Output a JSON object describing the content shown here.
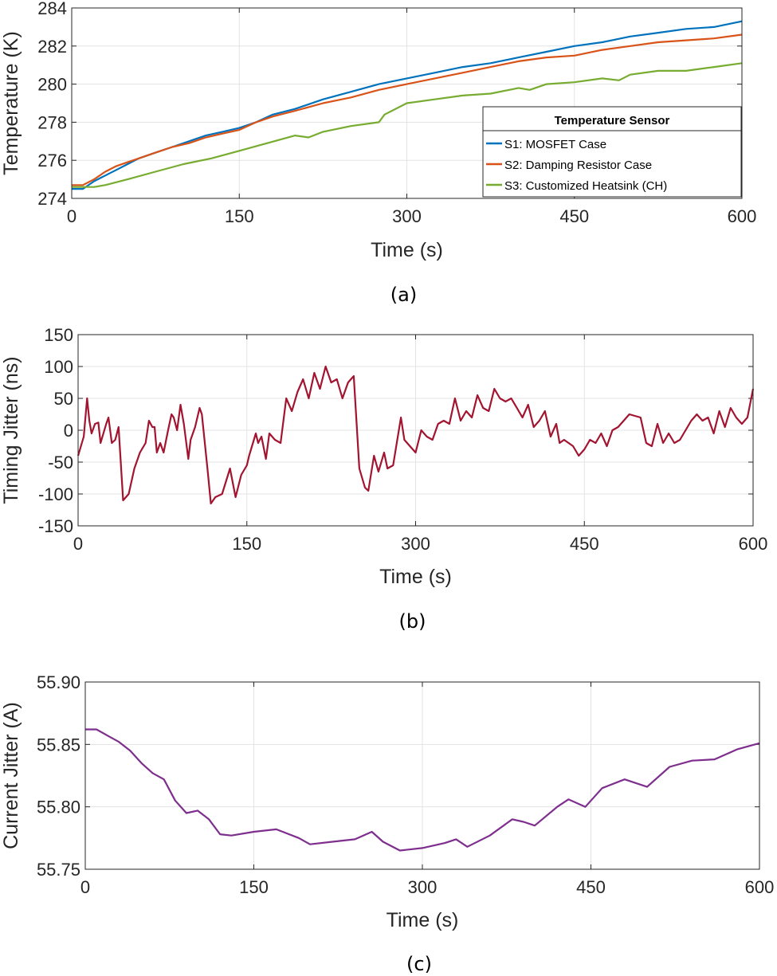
{
  "chart_data": [
    {
      "type": "line",
      "caption": "(a)",
      "xlabel": "Time (s)",
      "ylabel": "Temperature (K)",
      "xlim": [
        0,
        600
      ],
      "ylim": [
        274,
        284
      ],
      "xticks": [
        0,
        150,
        300,
        450,
        600
      ],
      "yticks": [
        274,
        276,
        278,
        280,
        282,
        284
      ],
      "grid": true,
      "legend": {
        "title": "Temperature Sensor",
        "placement": "bottom-right"
      },
      "series": [
        {
          "name": "S1: MOSFET Case",
          "color": "#0072BD",
          "x": [
            0,
            10,
            20,
            30,
            40,
            50,
            60,
            75,
            90,
            105,
            120,
            135,
            150,
            165,
            180,
            200,
            225,
            250,
            275,
            300,
            325,
            350,
            375,
            400,
            425,
            450,
            475,
            500,
            525,
            550,
            575,
            600
          ],
          "y": [
            274.5,
            274.5,
            274.9,
            275.2,
            275.5,
            275.8,
            276.1,
            276.4,
            276.7,
            277.0,
            277.3,
            277.5,
            277.7,
            278.0,
            278.4,
            278.7,
            279.2,
            279.6,
            280.0,
            280.3,
            280.6,
            280.9,
            281.1,
            281.4,
            281.7,
            282.0,
            282.2,
            282.5,
            282.7,
            282.9,
            283.0,
            283.3
          ]
        },
        {
          "name": "S2: Damping Resistor Case",
          "color": "#D95319",
          "x": [
            0,
            10,
            20,
            30,
            40,
            50,
            60,
            75,
            90,
            105,
            120,
            135,
            150,
            165,
            180,
            200,
            225,
            250,
            275,
            300,
            325,
            350,
            375,
            400,
            425,
            450,
            475,
            500,
            525,
            550,
            575,
            600
          ],
          "y": [
            274.7,
            274.7,
            275.0,
            275.4,
            275.7,
            275.9,
            276.1,
            276.4,
            276.7,
            276.9,
            277.2,
            277.4,
            277.6,
            278.0,
            278.3,
            278.6,
            279.0,
            279.3,
            279.7,
            280.0,
            280.3,
            280.6,
            280.9,
            281.2,
            281.4,
            281.5,
            281.8,
            282.0,
            282.2,
            282.3,
            282.4,
            282.6
          ]
        },
        {
          "name": "S3: Customized Heatsink (CH)",
          "color": "#77AC30",
          "x": [
            0,
            10,
            20,
            30,
            50,
            75,
            100,
            125,
            150,
            175,
            200,
            212,
            225,
            250,
            275,
            280,
            300,
            325,
            350,
            375,
            400,
            410,
            425,
            450,
            475,
            490,
            500,
            525,
            550,
            575,
            600
          ],
          "y": [
            274.6,
            274.6,
            274.6,
            274.7,
            275.0,
            275.4,
            275.8,
            276.1,
            276.5,
            276.9,
            277.3,
            277.2,
            277.5,
            277.8,
            278.0,
            278.4,
            279.0,
            279.2,
            279.4,
            279.5,
            279.8,
            279.7,
            280.0,
            280.1,
            280.3,
            280.2,
            280.5,
            280.7,
            280.7,
            280.9,
            281.1
          ]
        }
      ]
    },
    {
      "type": "line",
      "caption": "(b)",
      "xlabel": "Time (s)",
      "ylabel": "Timing Jitter (ns)",
      "xlim": [
        0,
        600
      ],
      "ylim": [
        -150,
        150
      ],
      "xticks": [
        0,
        150,
        300,
        450,
        600
      ],
      "yticks": [
        -150,
        -100,
        -50,
        0,
        50,
        100,
        150
      ],
      "grid": true,
      "series": [
        {
          "name": "Timing Jitter",
          "color": "#A2142F",
          "x": [
            0,
            5,
            8,
            10,
            12,
            15,
            18,
            20,
            25,
            27,
            30,
            33,
            36,
            40,
            45,
            50,
            55,
            60,
            63,
            66,
            68,
            70,
            73,
            76,
            80,
            83,
            85,
            88,
            91,
            94,
            98,
            100,
            104,
            108,
            110,
            115,
            118,
            122,
            128,
            135,
            140,
            145,
            150,
            152,
            158,
            160,
            163,
            167,
            170,
            175,
            180,
            185,
            190,
            195,
            200,
            205,
            210,
            215,
            220,
            225,
            230,
            235,
            240,
            245,
            250,
            255,
            258,
            263,
            267,
            272,
            275,
            280,
            287,
            290,
            295,
            300,
            305,
            310,
            315,
            320,
            325,
            330,
            335,
            340,
            345,
            350,
            355,
            360,
            365,
            370,
            375,
            380,
            385,
            390,
            395,
            400,
            405,
            410,
            415,
            420,
            425,
            428,
            432,
            440,
            445,
            450,
            455,
            460,
            465,
            470,
            475,
            480,
            490,
            500,
            505,
            510,
            515,
            520,
            525,
            530,
            535,
            540,
            545,
            550,
            555,
            560,
            565,
            570,
            575,
            580,
            585,
            590,
            595,
            600
          ],
          "y": [
            -40,
            -10,
            50,
            15,
            -5,
            10,
            12,
            -20,
            10,
            20,
            -20,
            -15,
            5,
            -110,
            -100,
            -60,
            -35,
            -20,
            15,
            5,
            5,
            -35,
            -20,
            -35,
            0,
            25,
            20,
            0,
            40,
            10,
            -45,
            -15,
            5,
            35,
            25,
            -60,
            -115,
            -105,
            -100,
            -60,
            -105,
            -70,
            -55,
            -40,
            -5,
            -20,
            -10,
            -45,
            -5,
            -15,
            -20,
            50,
            30,
            60,
            80,
            50,
            90,
            65,
            100,
            75,
            80,
            50,
            75,
            85,
            -60,
            -90,
            -95,
            -40,
            -65,
            -35,
            -60,
            -55,
            20,
            -15,
            -25,
            -35,
            0,
            -10,
            -15,
            10,
            15,
            10,
            50,
            15,
            30,
            20,
            55,
            35,
            30,
            65,
            50,
            45,
            50,
            35,
            20,
            40,
            5,
            15,
            30,
            -10,
            10,
            -20,
            -15,
            -25,
            -40,
            -30,
            -15,
            -20,
            -5,
            -25,
            0,
            5,
            25,
            20,
            -20,
            -25,
            10,
            -20,
            -5,
            -20,
            -15,
            0,
            15,
            25,
            15,
            20,
            -5,
            30,
            5,
            35,
            20,
            10,
            20,
            65
          ]
        }
      ]
    },
    {
      "type": "line",
      "caption": "(c)",
      "xlabel": "Time (s)",
      "ylabel": "Current Jitter (A)",
      "xlim": [
        0,
        600
      ],
      "ylim": [
        55.75,
        55.9
      ],
      "xticks": [
        0,
        150,
        300,
        450,
        600
      ],
      "yticks": [
        55.75,
        55.8,
        55.85,
        55.9
      ],
      "grid": true,
      "series": [
        {
          "name": "Current Jitter",
          "color": "#7E2F8E",
          "x": [
            0,
            10,
            20,
            30,
            40,
            50,
            60,
            70,
            80,
            90,
            100,
            110,
            120,
            130,
            150,
            170,
            190,
            200,
            220,
            240,
            255,
            265,
            280,
            300,
            320,
            330,
            340,
            360,
            380,
            390,
            400,
            420,
            430,
            445,
            460,
            480,
            500,
            520,
            540,
            560,
            580,
            600
          ],
          "y": [
            55.862,
            55.862,
            55.857,
            55.852,
            55.845,
            55.835,
            55.827,
            55.822,
            55.805,
            55.795,
            55.797,
            55.79,
            55.778,
            55.777,
            55.78,
            55.782,
            55.775,
            55.77,
            55.772,
            55.774,
            55.78,
            55.772,
            55.765,
            55.767,
            55.771,
            55.774,
            55.768,
            55.777,
            55.79,
            55.788,
            55.785,
            55.8,
            55.806,
            55.8,
            55.815,
            55.822,
            55.816,
            55.832,
            55.837,
            55.838,
            55.846,
            55.851
          ]
        }
      ]
    }
  ]
}
